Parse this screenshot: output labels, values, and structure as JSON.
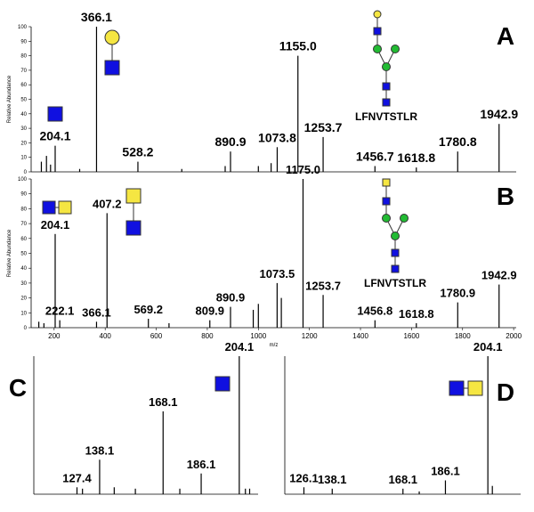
{
  "chart_data": [
    {
      "type": "stem",
      "panel": "A",
      "peptide": "LFNVTSTLR",
      "y_label": "Relative Abundance",
      "color": "#000000",
      "x": [
        150,
        170,
        186,
        204.1,
        300,
        366.1,
        528.2,
        700,
        870,
        890.9,
        1000,
        1050,
        1073.8,
        1155.0,
        1253.7,
        1456.7,
        1618.8,
        1780.8,
        1942.9
      ],
      "values": [
        7,
        11,
        5,
        18,
        2,
        100,
        7,
        2,
        4,
        14,
        4,
        6,
        17,
        80,
        24,
        4,
        3,
        14,
        33
      ],
      "peak_labels": [
        null,
        null,
        null,
        "204.1",
        null,
        "366.1",
        "528.2",
        null,
        null,
        "890.9",
        null,
        null,
        "1073.8",
        "1155.0",
        "1253.7",
        "1456.7",
        "1618.8",
        "1780.8",
        "1942.9"
      ],
      "xlim": [
        110,
        2010
      ],
      "ylim": [
        0,
        100
      ],
      "yticks": [
        0,
        10,
        20,
        30,
        40,
        50,
        60,
        70,
        80,
        90,
        100
      ]
    },
    {
      "type": "stem",
      "panel": "B",
      "peptide": "LFNVTSTLR",
      "y_label": "Relative Abundance",
      "x_label": "m/z",
      "color": "#000000",
      "x": [
        140,
        160,
        204.1,
        222.1,
        366.1,
        407.2,
        569.2,
        650,
        809.9,
        890.9,
        980,
        1000,
        1073.5,
        1090,
        1175.0,
        1253.7,
        1456.8,
        1618.8,
        1780.9,
        1942.9
      ],
      "values": [
        4,
        3,
        63,
        5,
        4,
        77,
        6,
        3,
        5,
        14,
        12,
        16,
        30,
        20,
        100,
        22,
        5,
        3,
        17,
        29
      ],
      "peak_labels": [
        null,
        null,
        "204.1",
        "222.1",
        "366.1",
        "407.2",
        "569.2",
        null,
        "809.9",
        "890.9",
        null,
        null,
        "1073.5",
        null,
        "1175.0",
        "1253.7",
        "1456.8",
        "1618.8",
        "1780.9",
        "1942.9"
      ],
      "xlim": [
        110,
        2010
      ],
      "ylim": [
        0,
        100
      ],
      "yticks": [
        0,
        10,
        20,
        30,
        40,
        50,
        60,
        70,
        80,
        90,
        100
      ],
      "xticks": [
        200,
        400,
        600,
        800,
        1000,
        1200,
        1400,
        1600,
        1800,
        2000
      ]
    },
    {
      "type": "stem",
      "panel": "C",
      "color": "#000000",
      "x": [
        127.4,
        130,
        138.1,
        145,
        155,
        168.1,
        176,
        186.1,
        204.1,
        207,
        209
      ],
      "values": [
        5,
        4,
        25,
        5,
        4,
        60,
        4,
        15,
        100,
        4,
        4
      ],
      "peak_labels": [
        "127.4",
        null,
        "138.1",
        null,
        null,
        "168.1",
        null,
        "186.1",
        "204.1",
        null,
        null
      ],
      "xlim": [
        107,
        213
      ],
      "ylim": [
        0,
        100
      ]
    },
    {
      "type": "stem",
      "panel": "D",
      "color": "#000000",
      "x": [
        126.1,
        138.1,
        168.1,
        175,
        186.1,
        204.1,
        206
      ],
      "values": [
        5,
        4,
        4,
        2,
        10,
        100,
        6
      ],
      "peak_labels": [
        "126.1",
        "138.1",
        "168.1",
        null,
        "186.1",
        "204.1",
        null
      ],
      "xlim": [
        118,
        218
      ],
      "ylim": [
        0,
        100
      ]
    }
  ]
}
